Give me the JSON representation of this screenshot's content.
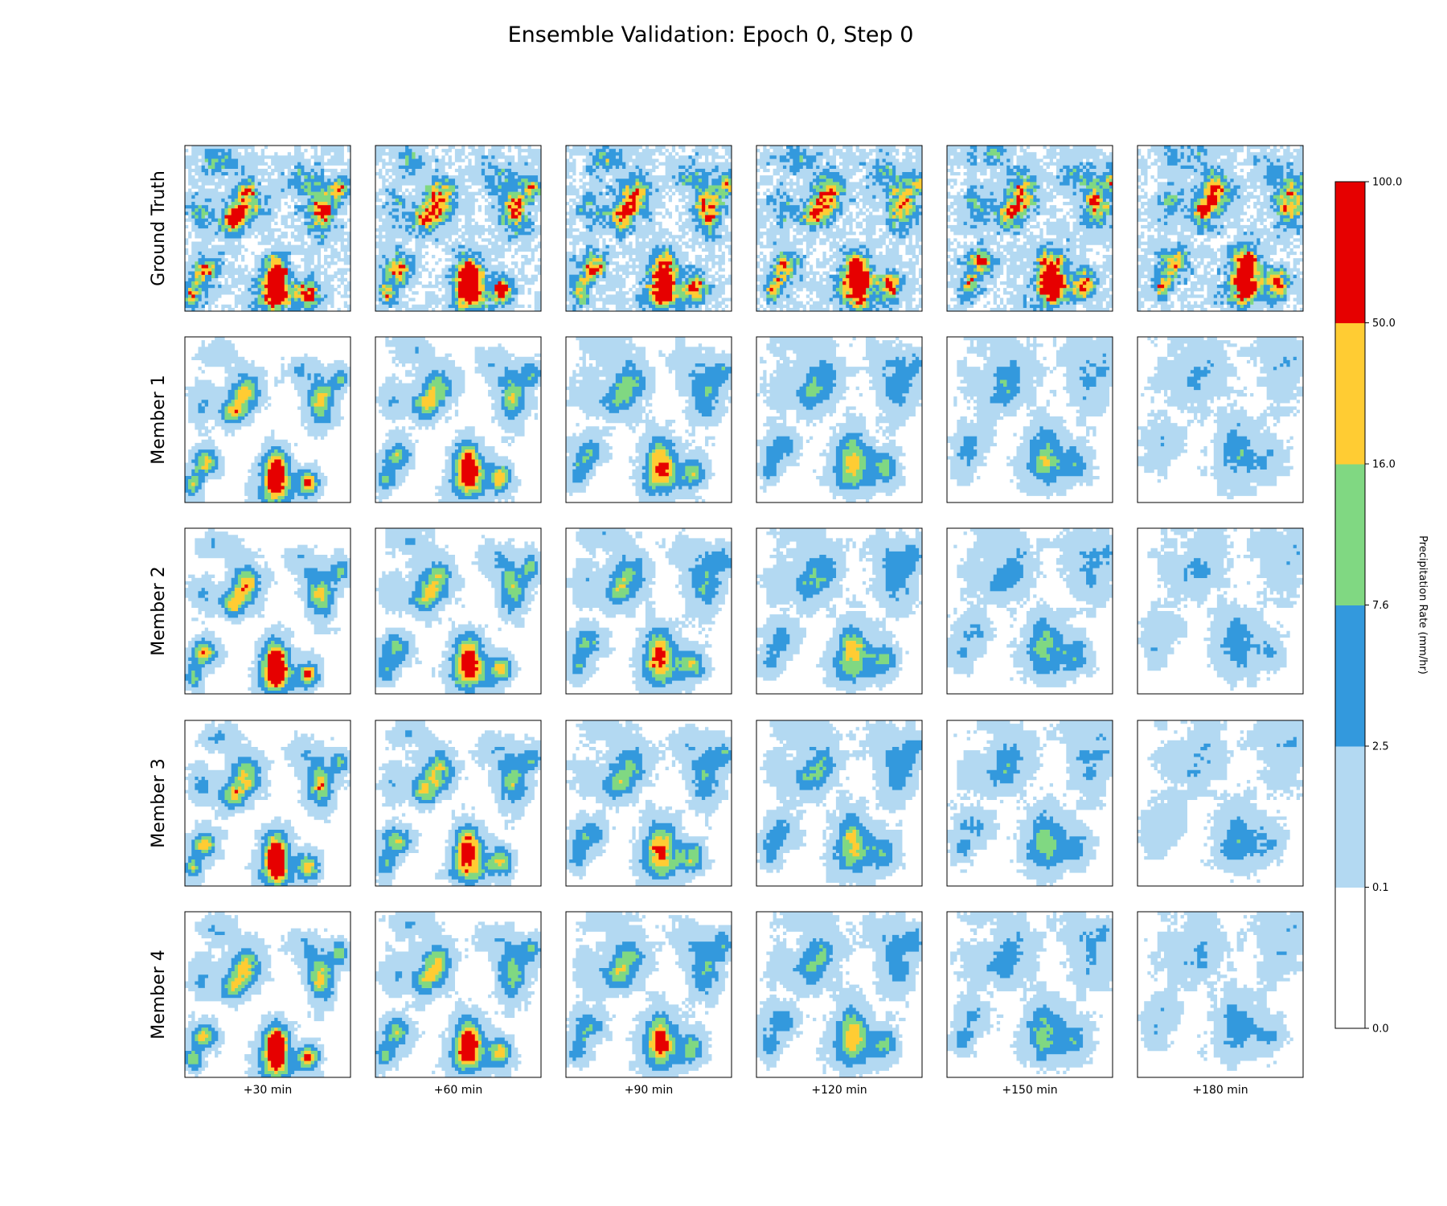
{
  "chart_data": {
    "type": "heatmap",
    "title": "Ensemble Validation: Epoch 0, Step 0",
    "rows": [
      "Ground Truth",
      "Member 1",
      "Member 2",
      "Member 3",
      "Member 4"
    ],
    "columns": [
      "+30 min",
      "+60 min",
      "+90 min",
      "+120 min",
      "+150 min",
      "+180 min"
    ],
    "colorbar": {
      "label": "Precipitation Rate (mm/hr)",
      "ticks": [
        "0.0",
        "0.1",
        "2.5",
        "7.6",
        "16.0",
        "50.0",
        "100.0"
      ],
      "levels": [
        0.0,
        0.1,
        2.5,
        7.6,
        16.0,
        50.0,
        100.0
      ],
      "colors": [
        "#ffffff",
        "#b3d9f2",
        "#3399dd",
        "#80d882",
        "#ffcc33",
        "#e60000"
      ]
    },
    "grid": false
  }
}
